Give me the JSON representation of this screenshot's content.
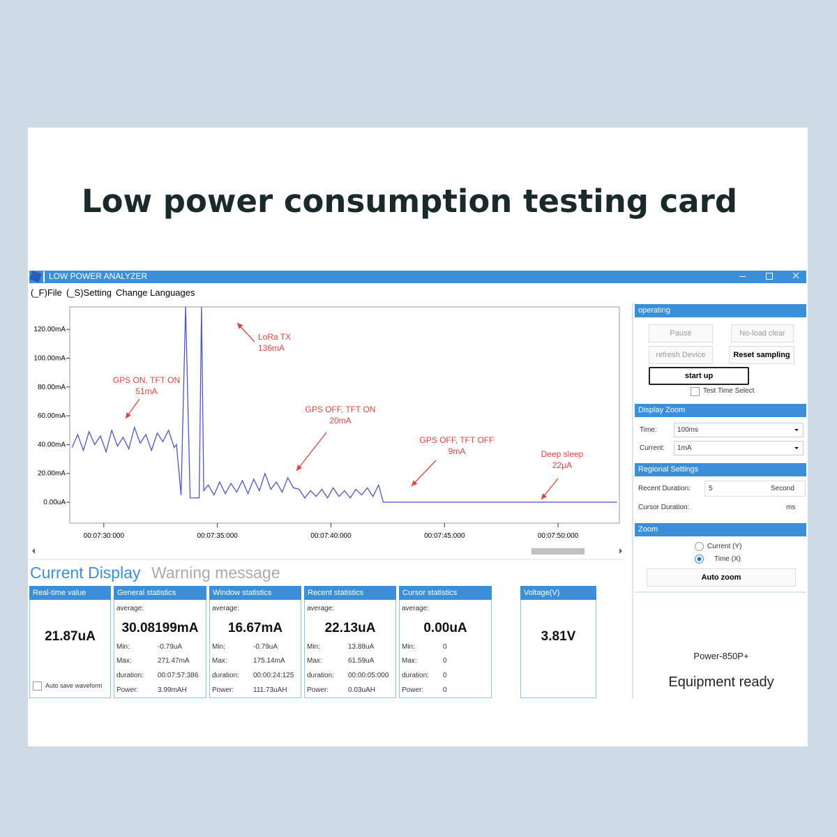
{
  "header": {
    "title": "Low power consumption testing card"
  },
  "window": {
    "title": "LOW POWER ANALYZER",
    "menu": [
      "(_F)File",
      "(_S)Setting",
      "Change Languages"
    ]
  },
  "chart_data": {
    "type": "line",
    "x": [
      448.6,
      448.85,
      449.1,
      449.35,
      449.6,
      449.85,
      450.1,
      450.35,
      450.6,
      450.85,
      451.1,
      451.35,
      451.6,
      451.85,
      452.1,
      452.35,
      452.6,
      452.85,
      453.1,
      453.2,
      453.4,
      453.6,
      453.8,
      454.2,
      454.3,
      454.4,
      454.6,
      454.85,
      455.1,
      455.35,
      455.6,
      455.85,
      456.1,
      456.35,
      456.6,
      456.85,
      457.1,
      457.35,
      457.6,
      457.85,
      458.1,
      458.35,
      458.6,
      458.85,
      459.1,
      459.35,
      459.6,
      459.85,
      460.1,
      460.35,
      460.6,
      460.85,
      461.1,
      461.35,
      461.6,
      461.85,
      462.1,
      462.3,
      472.6
    ],
    "series": [
      {
        "color": "#4a55c8",
        "values": [
          38,
          47,
          36,
          49,
          40,
          46,
          35,
          50,
          39,
          45,
          37,
          52,
          41,
          47,
          36,
          48,
          42,
          50,
          38,
          40,
          5,
          136,
          3,
          3,
          136,
          8,
          12,
          5,
          14,
          6,
          13,
          7,
          15,
          6,
          16,
          8,
          20,
          9,
          14,
          7,
          17,
          10,
          9,
          3,
          8,
          4,
          9,
          3,
          10,
          4,
          8,
          3,
          9,
          5,
          10,
          4,
          12,
          0.022,
          0.022
        ]
      }
    ],
    "xlim": [
      448.5,
      472.7
    ],
    "xticks": [
      {
        "value": 450,
        "label": "00:07:30:000"
      },
      {
        "value": 455,
        "label": "00:07:35:000"
      },
      {
        "value": 460,
        "label": "00:07:40:000"
      },
      {
        "value": 465,
        "label": "00:07:45:000"
      },
      {
        "value": 470,
        "label": "00:07:50:000"
      }
    ],
    "ylim": [
      -14.5,
      135.6
    ],
    "yticks": [
      {
        "value": 0,
        "label": "0.00uA"
      },
      {
        "value": 20,
        "label": "20.00mA"
      },
      {
        "value": 40,
        "label": "40.00mA"
      },
      {
        "value": 60,
        "label": "60.00mA"
      },
      {
        "value": 80,
        "label": "80.00mA"
      },
      {
        "value": 100,
        "label": "100.00mA"
      },
      {
        "value": 120,
        "label": "120.00mA"
      }
    ],
    "grid": false,
    "annotations": [
      [
        "GPS ON, TFT ON",
        "51mA"
      ],
      [
        "LoRa TX",
        "136mA"
      ],
      [
        "GPS OFF, TFT ON",
        "20mA"
      ],
      [
        "GPS OFF, TFT OFF",
        "9mA"
      ],
      [
        "Deep sleep",
        "22μA"
      ]
    ]
  },
  "side": {
    "operating": {
      "title": "operating",
      "buttons": [
        "Pause",
        "No-load clear",
        "refresh Device",
        "Reset sampling",
        "start up"
      ],
      "checkbox": "Test Time Select"
    },
    "display_zoom": {
      "title": "Display Zoom",
      "rows": [
        [
          "Time:",
          "100ms"
        ],
        [
          "Current:",
          "1mA"
        ]
      ]
    },
    "regional": {
      "title": "Regional Settings",
      "recent": [
        "Recent Duration:",
        "5",
        "Second"
      ],
      "cursor": [
        "Cursor Duration:",
        "ms"
      ]
    },
    "zoom": {
      "title": "Zoom",
      "radios": [
        "Current  (Y)",
        "Time  (X)"
      ],
      "button": "Auto zoom"
    }
  },
  "display": {
    "tabs": [
      "Current Display",
      "Warning message"
    ],
    "panels": [
      {
        "title": "Real-time value",
        "value": "21.87uA",
        "checkbox": "Auto save waveform"
      },
      {
        "title": "General statistics",
        "average_label": "average:",
        "value": "30.08199mA",
        "rows": [
          [
            "Min:",
            "-0.79uA"
          ],
          [
            "Max:",
            "271.47mA"
          ],
          [
            "duration:",
            "00:07:57:386"
          ],
          [
            "Power:",
            "3.99mAH"
          ]
        ]
      },
      {
        "title": "Window statistics",
        "average_label": "average:",
        "value": "16.67mA",
        "rows": [
          [
            "Min:",
            "-0.79uA"
          ],
          [
            "Max:",
            "175.14mA"
          ],
          [
            "duration:",
            "00:00:24:125"
          ],
          [
            "Power:",
            "111.73uAH"
          ]
        ]
      },
      {
        "title": "Recent statistics",
        "average_label": "average:",
        "value": "22.13uA",
        "rows": [
          [
            "Min:",
            "13.88uA"
          ],
          [
            "Max:",
            "61.59uA"
          ],
          [
            "duration:",
            "00:00:05:000"
          ],
          [
            "Power:",
            "0.03uAH"
          ]
        ]
      },
      {
        "title": "Cursor statistics",
        "average_label": "average:",
        "value": "0.00uA",
        "rows": [
          [
            "Min:",
            "0"
          ],
          [
            "Max:",
            "0"
          ],
          [
            "duration:",
            "0"
          ],
          [
            "Power:",
            "0"
          ]
        ]
      },
      {
        "title": "Voltage(V)",
        "value": "3.81V"
      }
    ]
  },
  "status": {
    "device": "Power-850P+",
    "message": "Equipment ready"
  }
}
